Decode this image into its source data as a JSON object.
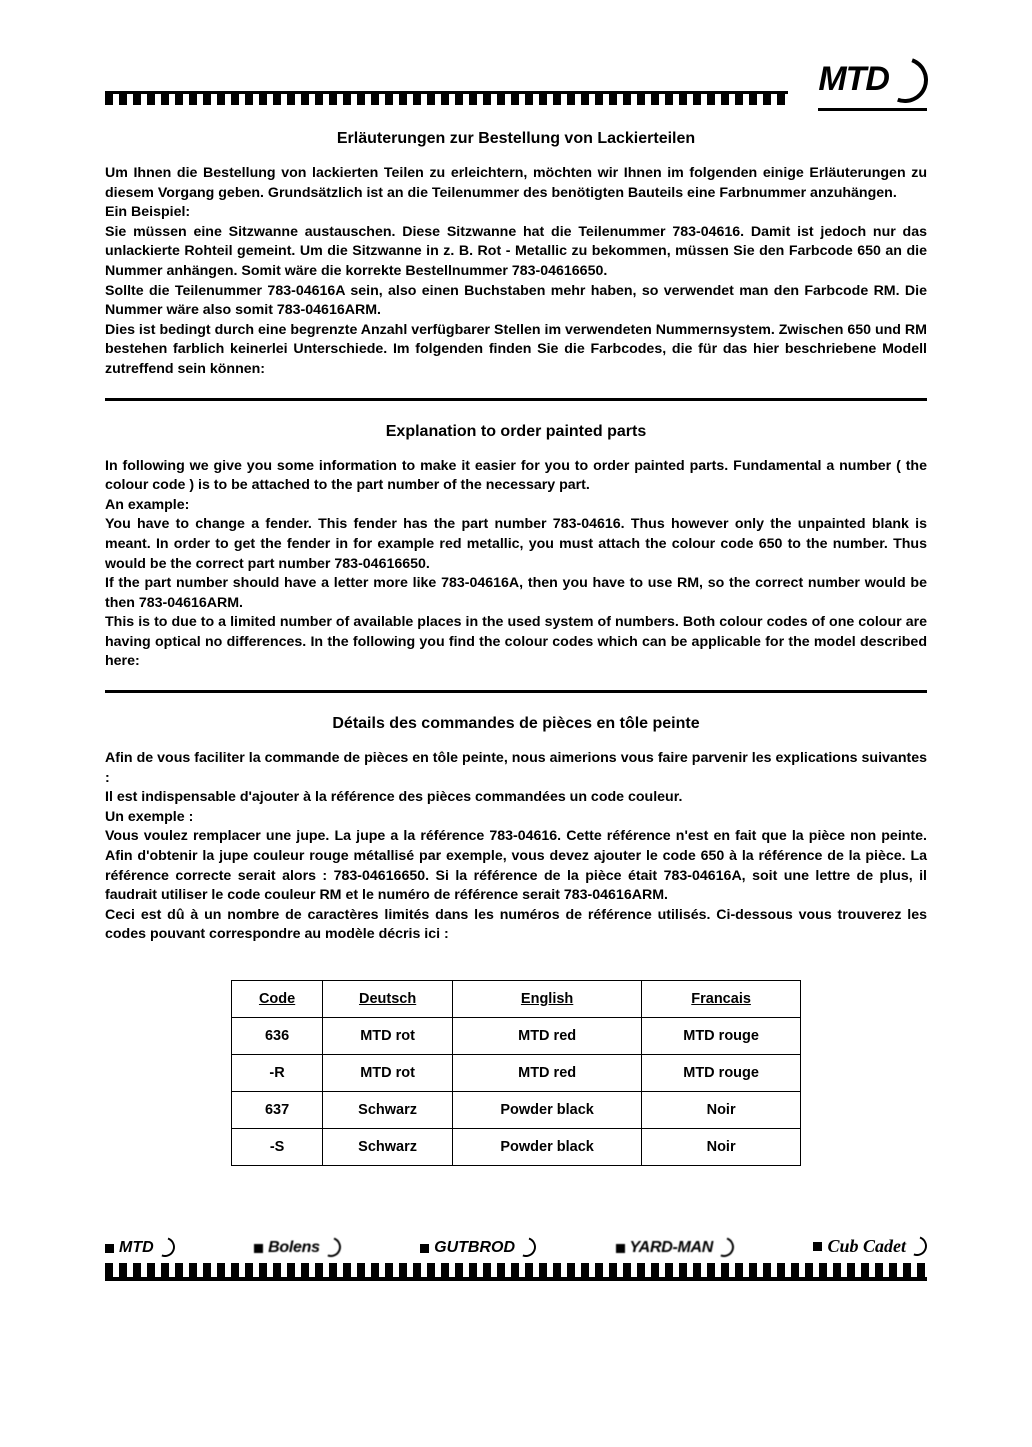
{
  "logo_text": "MTD",
  "section_de": {
    "title": "Erläuterungen zur Bestellung von Lackierteilen",
    "p1": "Um Ihnen die Bestellung von lackierten Teilen zu erleichtern, möchten wir Ihnen im folgenden einige Erläuterungen zu diesem Vorgang geben. Grundsätzlich ist an die Teilenummer des benötigten Bauteils eine Farbnummer anzuhängen.",
    "p2": "Ein Beispiel:",
    "p3": "Sie müssen eine Sitzwanne austauschen. Diese Sitzwanne hat die Teilenummer 783-04616. Damit ist jedoch nur das unlackierte Rohteil gemeint. Um die Sitzwanne in z. B. Rot - Metallic zu bekommen, müssen Sie den Farbcode 650 an die Nummer anhängen. Somit wäre die korrekte Bestellnummer 783-04616650.",
    "p4": "Sollte die Teilenummer 783-04616A sein, also einen Buchstaben mehr haben, so verwendet man den Farbcode RM. Die Nummer wäre also somit 783-04616ARM.",
    "p5": "Dies ist bedingt durch eine begrenzte Anzahl verfügbarer Stellen im verwendeten Nummernsystem. Zwischen 650 und RM bestehen farblich keinerlei Unterschiede. Im folgenden finden Sie die Farbcodes, die für das hier beschriebene Modell zutreffend sein können:"
  },
  "section_en": {
    "title": "Explanation  to order painted parts",
    "p1": "In following we give you some information to make it easier for you to order painted parts. Fundamental a number ( the colour code ) is to be attached to the part number of the necessary part.",
    "p2": "An example:",
    "p3": "You   have to change a fender. This fender has the part number 783-04616.   Thus however only the unpainted blank is meant. In order to get the fender in for example red metallic, you must attach the colour code 650 to the number. Thus would be the correct part number 783-04616650.",
    "p4": "If the part number should have a letter more like 783-04616A, then you have to use RM, so the correct number would be then 783-04616ARM.",
    "p5": "This is to due to a limited number of available places in the used system of numbers. Both colour codes of one colour are having optical no differences. In the following you find the colour codes which can be applicable for the model described here:"
  },
  "section_fr": {
    "title": "Détails des commandes de pièces en tôle peinte",
    "p1": "Afin de vous faciliter la commande de pièces en tôle peinte, nous aimerions vous faire   parvenir les explications suivantes :",
    "p2": "Il est indispensable d'ajouter à la référence des pièces commandées un code couleur.",
    "p3": "Un exemple :",
    "p4": "Vous voulez remplacer une jupe. La jupe a la référence 783-04616. Cette référence n'est en fait que la pièce non peinte. Afin d'obtenir la jupe couleur rouge métallisé par exemple, vous devez ajouter le code 650 à la référence de la pièce. La référence correcte serait alors : 783-04616650. Si la référence de la pièce était 783-04616A, soit une lettre de plus, il faudrait utiliser le code couleur RM et le numéro de référence serait 783-04616ARM.",
    "p5": "Ceci est dû à un nombre de caractères limités dans les numéros de référence utilisés. Ci-dessous vous trouverez les codes pouvant correspondre au modèle décris ici :"
  },
  "table": {
    "headers": [
      "Code",
      "Deutsch",
      "English",
      "Francais"
    ],
    "rows": [
      [
        "636",
        "MTD rot",
        "MTD red",
        "MTD rouge"
      ],
      [
        "-R",
        "MTD rot",
        "MTD red",
        "MTD rouge"
      ],
      [
        "637",
        "Schwarz",
        "Powder black",
        "Noir"
      ],
      [
        "-S",
        "Schwarz",
        "Powder black",
        "Noir"
      ]
    ]
  },
  "footer_brands": [
    "MTD",
    "Bolens",
    "GUTBROD",
    "YARD-MAN",
    "Cub Cadet"
  ]
}
